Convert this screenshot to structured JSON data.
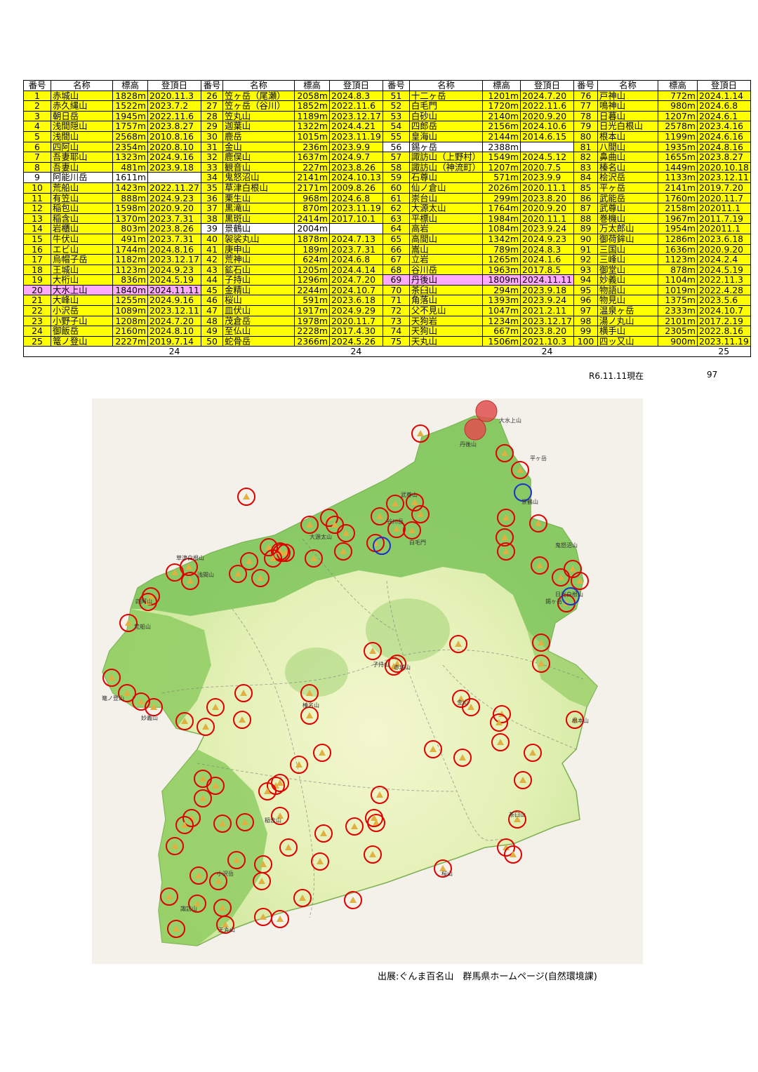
{
  "headers": [
    "番号",
    "名称",
    "標高",
    "登頂日",
    "番号",
    "名称",
    "標高",
    "登頂日",
    "番号",
    "名称",
    "標高",
    "登頂日",
    "番号",
    "名称",
    "標高",
    "登頂日"
  ],
  "rows": [
    [
      [
        "1",
        "赤城山",
        "1828m",
        "2020.11.3",
        "y"
      ],
      [
        "26",
        "笠ヶ岳（尾瀬）",
        "2058m",
        "2024.8.3",
        "y"
      ],
      [
        "51",
        "十二ヶ岳",
        "1201m",
        "2024.7.20",
        "y"
      ],
      [
        "76",
        "戸神山",
        "772m",
        "2024.1.14",
        "y"
      ]
    ],
    [
      [
        "2",
        "赤久縄山",
        "1522m",
        "2023.7.2",
        "y"
      ],
      [
        "27",
        "笠ヶ岳（谷川）",
        "1852m",
        "2022.11.6",
        "y"
      ],
      [
        "52",
        "白毛門",
        "1720m",
        "2022.11.6",
        "y"
      ],
      [
        "77",
        "鳴神山",
        "980m",
        "2024.6.8",
        "y"
      ]
    ],
    [
      [
        "3",
        "朝日岳",
        "1945m",
        "2022.11.6",
        "y"
      ],
      [
        "28",
        "笠丸山",
        "1189m",
        "2023.12.17",
        "y"
      ],
      [
        "53",
        "白砂山",
        "2140m",
        "2020.9.20",
        "y"
      ],
      [
        "78",
        "日暮山",
        "1207m",
        "2024.6.1",
        "y"
      ]
    ],
    [
      [
        "4",
        "浅間隠山",
        "1757m",
        "2023.8.27",
        "y"
      ],
      [
        "29",
        "迦葉山",
        "1322m",
        "2024.4.21",
        "y"
      ],
      [
        "54",
        "四郎岳",
        "2156m",
        "2024.10.6",
        "y"
      ],
      [
        "79",
        "日光白根山",
        "2578m",
        "2023.4.16",
        "y"
      ]
    ],
    [
      [
        "5",
        "浅間山",
        "2568m",
        "2010.8.16",
        "y"
      ],
      [
        "30",
        "鹿岳",
        "1015m",
        "2023.11.19",
        "y"
      ],
      [
        "55",
        "皇海山",
        "2144m",
        "2014.6.15",
        "y"
      ],
      [
        "80",
        "根本山",
        "1199m",
        "2024.6.16",
        "y"
      ]
    ],
    [
      [
        "6",
        "四阿山",
        "2354m",
        "2020.8.10",
        "y"
      ],
      [
        "31",
        "金山",
        "236m",
        "2023.9.9",
        "y"
      ],
      [
        "56",
        "錫ヶ岳",
        "2388m",
        "",
        "w"
      ],
      [
        "81",
        "八間山",
        "1935m",
        "2024.8.16",
        "y"
      ]
    ],
    [
      [
        "7",
        "吾妻耶山",
        "1323m",
        "2024.9.16",
        "y"
      ],
      [
        "32",
        "鹿俣山",
        "1637m",
        "2024.9.7",
        "y"
      ],
      [
        "57",
        "諏訪山（上野村）",
        "1549m",
        "2024.5.12",
        "y"
      ],
      [
        "82",
        "鼻曲山",
        "1655m",
        "2023.8.27",
        "y"
      ]
    ],
    [
      [
        "8",
        "吾妻山",
        "481m",
        "2023.9.18",
        "y"
      ],
      [
        "33",
        "観音山",
        "227m",
        "2023.8.26",
        "y"
      ],
      [
        "58",
        "諏訪山（神流町）",
        "1207m",
        "2020.7.5",
        "y"
      ],
      [
        "83",
        "榛名山",
        "1449m",
        "2020.10.18",
        "y"
      ]
    ],
    [
      [
        "9",
        "阿能川岳",
        "1611m",
        "",
        "w"
      ],
      [
        "34",
        "鬼怒沼山",
        "2141m",
        "2024.10.13",
        "y"
      ],
      [
        "59",
        "石尊山",
        "571m",
        "2023.9.9",
        "y"
      ],
      [
        "84",
        "桧沢岳",
        "1133m",
        "2023.12.11",
        "y"
      ]
    ],
    [
      [
        "10",
        "荒船山",
        "1423m",
        "2022.11.27",
        "y"
      ],
      [
        "35",
        "草津白根山",
        "2171m",
        "2009.8.26",
        "y"
      ],
      [
        "60",
        "仙ノ倉山",
        "2026m",
        "2020.11.1",
        "y"
      ],
      [
        "85",
        "平ヶ岳",
        "2141m",
        "2019.7.20",
        "y"
      ]
    ],
    [
      [
        "11",
        "有笠山",
        "888m",
        "2024.9.23",
        "y"
      ],
      [
        "36",
        "栗生山",
        "968m",
        "2024.6.8",
        "y"
      ],
      [
        "61",
        "崇台山",
        "299m",
        "2023.8.20",
        "y"
      ],
      [
        "86",
        "武能岳",
        "1760m",
        "2020.11.7",
        "y"
      ]
    ],
    [
      [
        "12",
        "稲包山",
        "1598m",
        "2020.9.20",
        "y"
      ],
      [
        "37",
        "黒滝山",
        "870m",
        "2023.11.19",
        "y"
      ],
      [
        "62",
        "大源太山",
        "1764m",
        "2020.9.20",
        "y"
      ],
      [
        "87",
        "武尊山",
        "2158m",
        "202011.1",
        "y"
      ]
    ],
    [
      [
        "13",
        "稲含山",
        "1370m",
        "2023.7.31",
        "y"
      ],
      [
        "38",
        "黒斑山",
        "2414m",
        "2017.10.1",
        "y"
      ],
      [
        "63",
        "平標山",
        "1984m",
        "2020.11.1",
        "y"
      ],
      [
        "88",
        "巻機山",
        "1967m",
        "2011.7.19",
        "y"
      ]
    ],
    [
      [
        "14",
        "岩櫃山",
        "803m",
        "2023.8.26",
        "y"
      ],
      [
        "39",
        "景鶴山",
        "2004m",
        "",
        "w"
      ],
      [
        "64",
        "高岩",
        "1084m",
        "2023.9.24",
        "y"
      ],
      [
        "89",
        "万太郎山",
        "1954m",
        "202011.1",
        "y"
      ]
    ],
    [
      [
        "15",
        "牛伏山",
        "491m",
        "2023.7.31",
        "y"
      ],
      [
        "40",
        "袈裟丸山",
        "1878m",
        "2024.7.13",
        "y"
      ],
      [
        "65",
        "高間山",
        "1342m",
        "2024.9.23",
        "y"
      ],
      [
        "90",
        "御荷鉾山",
        "1286m",
        "2023.6.18",
        "y"
      ]
    ],
    [
      [
        "16",
        "エビ山",
        "1744m",
        "2024.8.16",
        "y"
      ],
      [
        "41",
        "庚申山",
        "189m",
        "2023.7.31",
        "y"
      ],
      [
        "66",
        "嵩山",
        "789m",
        "2024.8.3",
        "y"
      ],
      [
        "91",
        "三国山",
        "1636m",
        "2020.9.20",
        "y"
      ]
    ],
    [
      [
        "17",
        "烏帽子岳",
        "1182m",
        "2023.12.17",
        "y"
      ],
      [
        "42",
        "荒神山",
        "624m",
        "2024.6.8",
        "y"
      ],
      [
        "67",
        "立岩",
        "1265m",
        "2024.1.6",
        "y"
      ],
      [
        "92",
        "三峰山",
        "1123m",
        "2024.2.4",
        "y"
      ]
    ],
    [
      [
        "18",
        "王城山",
        "1123m",
        "2024.9.23",
        "y"
      ],
      [
        "43",
        "鉱石山",
        "1205m",
        "2024.4.14",
        "y"
      ],
      [
        "68",
        "谷川岳",
        "1963m",
        "2017.8.5",
        "y"
      ],
      [
        "93",
        "御堂山",
        "878m",
        "2024.5.19",
        "y"
      ]
    ],
    [
      [
        "19",
        "大桁山",
        "836m",
        "2024.5.19",
        "y"
      ],
      [
        "44",
        "子持山",
        "1296m",
        "2024.7.20",
        "y"
      ],
      [
        "69",
        "丹後山",
        "1809m",
        "2024.11.11",
        "p"
      ],
      [
        "94",
        "妙義山",
        "1104m",
        "2022.11.3",
        "y"
      ]
    ],
    [
      [
        "20",
        "大水上山",
        "1840m",
        "2024.11.11",
        "p"
      ],
      [
        "45",
        "金精山",
        "2244m",
        "2024.10.7",
        "y"
      ],
      [
        "70",
        "茶臼山",
        "294m",
        "2023.9.18",
        "y"
      ],
      [
        "95",
        "物語山",
        "1019m",
        "2022.4.28",
        "y"
      ]
    ],
    [
      [
        "21",
        "大峰山",
        "1255m",
        "2024.9.16",
        "y"
      ],
      [
        "46",
        "桜山",
        "591m",
        "2023.6.18",
        "y"
      ],
      [
        "71",
        "角落山",
        "1393m",
        "2023.9.24",
        "y"
      ],
      [
        "96",
        "物見山",
        "1375m",
        "2023.5.6",
        "y"
      ]
    ],
    [
      [
        "22",
        "小沢岳",
        "1089m",
        "2023.12.11",
        "y"
      ],
      [
        "47",
        "皿伏山",
        "1917m",
        "2024.9.29",
        "y"
      ],
      [
        "72",
        "父不見山",
        "1047m",
        "2021.2.11",
        "y"
      ],
      [
        "97",
        "温泉ヶ岳",
        "2333m",
        "2024.10.7",
        "y"
      ]
    ],
    [
      [
        "23",
        "小野子山",
        "1208m",
        "2024.7.20",
        "y"
      ],
      [
        "48",
        "茂倉岳",
        "1978m",
        "2020.11.7",
        "y"
      ],
      [
        "73",
        "天狗岩",
        "1234m",
        "2023.12.17",
        "y"
      ],
      [
        "98",
        "湯ノ丸山",
        "2101m",
        "2017.2.19",
        "y"
      ]
    ],
    [
      [
        "24",
        "御飯岳",
        "2160m",
        "2024.8.10",
        "y"
      ],
      [
        "49",
        "至仏山",
        "2228m",
        "2017.4.30",
        "y"
      ],
      [
        "74",
        "天狗山",
        "667m",
        "2023.8.20",
        "y"
      ],
      [
        "99",
        "横手山",
        "2305m",
        "2022.8.16",
        "y"
      ]
    ],
    [
      [
        "25",
        "篭ノ登山",
        "2227m",
        "2019.7.14",
        "y"
      ],
      [
        "50",
        "蛇骨岳",
        "2366m",
        "2024.5.26",
        "y"
      ],
      [
        "75",
        "天丸山",
        "1506m",
        "2021.10.3",
        "y"
      ],
      [
        "100",
        "四ッ又山",
        "900m",
        "2023.11.19",
        "y"
      ]
    ]
  ],
  "totals": [
    "24",
    "24",
    "24",
    "25"
  ],
  "as_of": "R6.11.11現在",
  "grand_total": "97",
  "credit": "出展:ぐんま百名山　群馬県ホームページ(自然環境課)",
  "map_labels": [
    "大水上山",
    "丹後山",
    "平ヶ岳",
    "景鶴山",
    "錫ヶ岳",
    "日光白根山",
    "鬼怒沼山",
    "大源太山",
    "谷川岳",
    "白毛門",
    "武尊山",
    "浅間山",
    "篭ノ登山",
    "草津白根山",
    "榛名山",
    "赤城山",
    "子持山",
    "妙義山",
    "根本山",
    "金山",
    "茶臼山",
    "桜山",
    "天丸山",
    "諏訪山",
    "稲含山",
    "小沢岳",
    "荒船山",
    "四阿山"
  ],
  "colors": {
    "row_done": "#ffff00",
    "row_new": "#ffaaff",
    "row_pending": "#ffffff",
    "circle_done": "#e00000",
    "circle_pending": "#1e2fd0",
    "circle_new_fill": "#e05050"
  }
}
